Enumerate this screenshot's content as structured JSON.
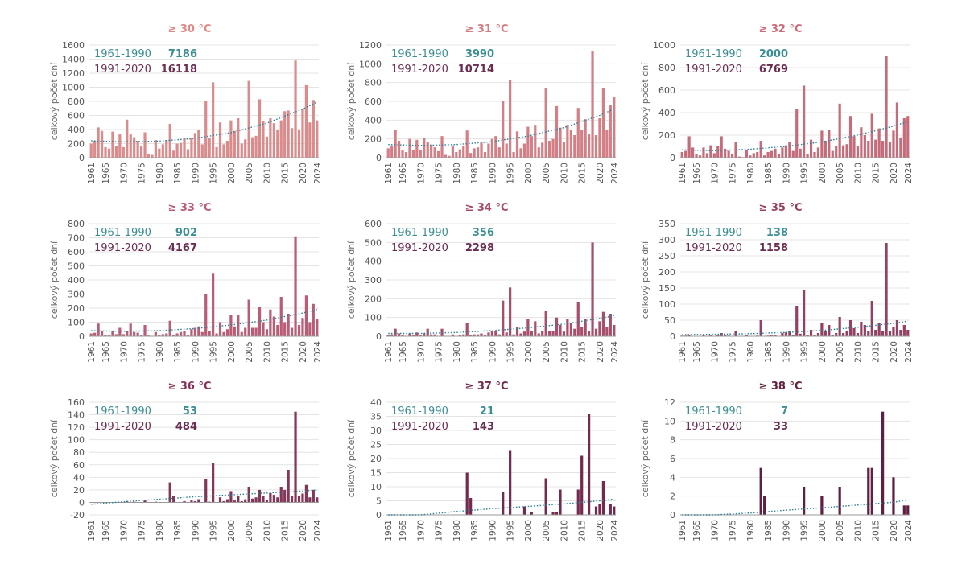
{
  "ylabel": "celkový počet dní",
  "x_tick_labels": [
    "1961",
    "1965",
    "1970",
    "1975",
    "1980",
    "1985",
    "1990",
    "1995",
    "2000",
    "2005",
    "2010",
    "2015",
    "2020",
    "2024"
  ],
  "period_labels": [
    "1961-1990",
    "1991-2020"
  ],
  "colors": {
    "period1": "#3a8f93",
    "period2": "#6b2c52",
    "trend": "#2a7f9a",
    "grid": "#e4e4e4",
    "axis": "#9a9a9a",
    "tick_text": "#555555"
  },
  "chart_data": [
    {
      "type": "bar",
      "title": "≥ 30 °C",
      "color": "#da8c8c",
      "title_color": "#e08a86",
      "ylim": [
        0,
        1600
      ],
      "yticks": [
        0,
        200,
        400,
        600,
        800,
        1000,
        1200,
        1400,
        1600
      ],
      "totals": [
        "7186",
        "16118"
      ],
      "trend": [
        [
          1961,
          240
        ],
        [
          1970,
          225
        ],
        [
          1980,
          235
        ],
        [
          1990,
          275
        ],
        [
          2000,
          355
        ],
        [
          2010,
          490
        ],
        [
          2020,
          690
        ],
        [
          2024,
          790
        ]
      ],
      "x_start": 1961,
      "values": [
        200,
        240,
        430,
        380,
        150,
        130,
        370,
        160,
        330,
        150,
        540,
        330,
        290,
        240,
        170,
        360,
        50,
        40,
        250,
        130,
        190,
        250,
        480,
        100,
        200,
        210,
        280,
        120,
        280,
        350,
        400,
        190,
        800,
        280,
        1070,
        150,
        500,
        190,
        240,
        530,
        380,
        560,
        200,
        260,
        1090,
        290,
        310,
        830,
        520,
        300,
        560,
        490,
        400,
        530,
        660,
        670,
        420,
        1380,
        390,
        690,
        1030,
        500,
        820,
        530
      ]
    },
    {
      "type": "bar",
      "title": "≥ 31 °C",
      "color": "#d27f85",
      "title_color": "#d87d82",
      "ylim": [
        0,
        1200
      ],
      "yticks": [
        0,
        200,
        400,
        600,
        800,
        1000,
        1200
      ],
      "totals": [
        "3990",
        "10714"
      ],
      "trend": [
        [
          1961,
          140
        ],
        [
          1970,
          130
        ],
        [
          1980,
          140
        ],
        [
          1990,
          170
        ],
        [
          2000,
          230
        ],
        [
          2010,
          320
        ],
        [
          2020,
          450
        ],
        [
          2024,
          520
        ]
      ],
      "x_start": 1961,
      "values": [
        100,
        130,
        300,
        180,
        80,
        60,
        200,
        80,
        190,
        80,
        210,
        170,
        140,
        110,
        70,
        230,
        30,
        20,
        130,
        60,
        90,
        120,
        290,
        50,
        100,
        110,
        160,
        60,
        150,
        200,
        230,
        110,
        600,
        150,
        830,
        60,
        280,
        100,
        150,
        330,
        230,
        350,
        110,
        160,
        740,
        180,
        200,
        550,
        320,
        170,
        350,
        300,
        240,
        530,
        300,
        410,
        250,
        1140,
        240,
        420,
        740,
        300,
        560,
        650
      ]
    },
    {
      "type": "bar",
      "title": "≥ 32 °C",
      "color": "#c56c7b",
      "title_color": "#d06b78",
      "ylim": [
        0,
        1000
      ],
      "yticks": [
        0,
        200,
        400,
        600,
        800,
        1000
      ],
      "totals": [
        "2000",
        "6769"
      ],
      "trend": [
        [
          1961,
          70
        ],
        [
          1970,
          62
        ],
        [
          1980,
          75
        ],
        [
          1990,
          100
        ],
        [
          2000,
          140
        ],
        [
          2010,
          200
        ],
        [
          2020,
          280
        ],
        [
          2024,
          320
        ]
      ],
      "x_start": 1961,
      "values": [
        50,
        60,
        190,
        90,
        30,
        20,
        90,
        40,
        110,
        40,
        100,
        190,
        80,
        60,
        30,
        140,
        10,
        5,
        70,
        20,
        40,
        50,
        150,
        20,
        50,
        60,
        80,
        30,
        90,
        110,
        140,
        60,
        430,
        80,
        640,
        30,
        160,
        50,
        90,
        240,
        150,
        250,
        60,
        100,
        480,
        110,
        120,
        370,
        190,
        100,
        270,
        200,
        150,
        390,
        160,
        260,
        150,
        900,
        140,
        240,
        490,
        180,
        350,
        370
      ]
    },
    {
      "type": "bar",
      "title": "≥ 33 °C",
      "color": "#b85d75",
      "title_color": "#bb5a73",
      "ylim": [
        0,
        800
      ],
      "yticks": [
        0,
        100,
        200,
        300,
        400,
        500,
        600,
        700,
        800
      ],
      "totals": [
        "902",
        "4167"
      ],
      "trend": [
        [
          1961,
          40
        ],
        [
          1970,
          35
        ],
        [
          1980,
          40
        ],
        [
          1990,
          55
        ],
        [
          2000,
          80
        ],
        [
          2010,
          115
        ],
        [
          2020,
          165
        ],
        [
          2024,
          190
        ]
      ],
      "x_start": 1961,
      "values": [
        20,
        25,
        90,
        40,
        10,
        10,
        40,
        15,
        60,
        15,
        40,
        90,
        30,
        25,
        10,
        80,
        5,
        2,
        30,
        10,
        15,
        20,
        110,
        10,
        20,
        30,
        40,
        10,
        50,
        60,
        70,
        30,
        300,
        40,
        450,
        20,
        100,
        30,
        50,
        150,
        70,
        150,
        30,
        60,
        260,
        60,
        60,
        210,
        100,
        50,
        190,
        140,
        80,
        280,
        100,
        160,
        60,
        710,
        80,
        130,
        290,
        100,
        230,
        120
      ]
    },
    {
      "type": "bar",
      "title": "≥ 34 °C",
      "color": "#a64e6b",
      "title_color": "#a84b6a",
      "ylim": [
        0,
        600
      ],
      "yticks": [
        0,
        100,
        200,
        300,
        400,
        500,
        600
      ],
      "totals": [
        "356",
        "2298"
      ],
      "trend": [
        [
          1961,
          15
        ],
        [
          1970,
          15
        ],
        [
          1980,
          20
        ],
        [
          1990,
          30
        ],
        [
          2000,
          45
        ],
        [
          2010,
          65
        ],
        [
          2020,
          95
        ],
        [
          2024,
          110
        ]
      ],
      "x_start": 1961,
      "values": [
        5,
        10,
        40,
        15,
        5,
        2,
        15,
        5,
        20,
        5,
        15,
        40,
        10,
        10,
        2,
        40,
        0,
        0,
        10,
        2,
        5,
        10,
        70,
        5,
        10,
        10,
        15,
        5,
        20,
        30,
        30,
        10,
        190,
        20,
        260,
        10,
        50,
        15,
        25,
        90,
        30,
        80,
        15,
        30,
        135,
        30,
        30,
        100,
        60,
        25,
        90,
        70,
        40,
        180,
        50,
        90,
        30,
        500,
        40,
        80,
        130,
        50,
        120,
        60
      ]
    },
    {
      "type": "bar",
      "title": "≥ 35 °C",
      "color": "#934162",
      "title_color": "#96405f",
      "ylim": [
        0,
        350
      ],
      "yticks": [
        0,
        50,
        100,
        150,
        200,
        250,
        300,
        350
      ],
      "totals": [
        "138",
        "1158"
      ],
      "trend": [
        [
          1961,
          5
        ],
        [
          1970,
          6
        ],
        [
          1980,
          8
        ],
        [
          1990,
          12
        ],
        [
          2000,
          18
        ],
        [
          2010,
          28
        ],
        [
          2020,
          40
        ],
        [
          2024,
          47
        ]
      ],
      "x_start": 1961,
      "values": [
        2,
        2,
        5,
        1,
        0,
        0,
        3,
        1,
        5,
        1,
        5,
        10,
        3,
        2,
        0,
        15,
        0,
        0,
        3,
        0,
        1,
        2,
        50,
        1,
        2,
        3,
        5,
        1,
        10,
        12,
        15,
        5,
        95,
        8,
        145,
        3,
        20,
        5,
        10,
        40,
        15,
        35,
        5,
        10,
        60,
        10,
        15,
        50,
        25,
        10,
        45,
        35,
        15,
        110,
        20,
        40,
        15,
        290,
        15,
        30,
        50,
        20,
        35,
        20
      ]
    },
    {
      "type": "bar",
      "title": "≥ 36 °C",
      "color": "#823658",
      "title_color": "#883358",
      "ylim": [
        -20,
        160
      ],
      "yticks": [
        -20,
        0,
        20,
        40,
        60,
        80,
        100,
        120,
        140,
        160
      ],
      "totals": [
        "53",
        "484"
      ],
      "trend": [
        [
          1961,
          -3
        ],
        [
          1970,
          1
        ],
        [
          1980,
          5
        ],
        [
          1990,
          9
        ],
        [
          2000,
          12
        ],
        [
          2010,
          15
        ],
        [
          2020,
          18
        ],
        [
          2024,
          20
        ]
      ],
      "x_start": 1961,
      "values": [
        0,
        0,
        0,
        0,
        0,
        0,
        0,
        0,
        0,
        0,
        2,
        0,
        1,
        0,
        0,
        3,
        0,
        0,
        1,
        0,
        0,
        0,
        32,
        10,
        0,
        0,
        2,
        0,
        3,
        2,
        5,
        0,
        37,
        1,
        63,
        0,
        8,
        2,
        5,
        18,
        3,
        10,
        2,
        5,
        25,
        6,
        8,
        20,
        10,
        4,
        15,
        12,
        8,
        25,
        20,
        52,
        10,
        145,
        10,
        14,
        28,
        8,
        20,
        8
      ]
    },
    {
      "type": "bar",
      "title": "≥ 37 °C",
      "color": "#722a4e",
      "title_color": "#742a4f",
      "ylim": [
        0,
        40
      ],
      "yticks": [
        0,
        5,
        10,
        15,
        20,
        25,
        30,
        35,
        40
      ],
      "totals": [
        "21",
        "143"
      ],
      "trend": [
        [
          1961,
          -2
        ],
        [
          1970,
          0
        ],
        [
          1980,
          1.2
        ],
        [
          1990,
          2.2
        ],
        [
          2000,
          3
        ],
        [
          2010,
          3.9
        ],
        [
          2020,
          5
        ],
        [
          2024,
          5.6
        ]
      ],
      "x_start": 1961,
      "values": [
        0,
        0,
        0,
        0,
        0,
        0,
        0,
        0,
        0,
        0,
        0,
        0,
        0,
        0,
        0,
        0,
        0,
        0,
        0,
        0,
        0,
        0,
        15,
        6,
        0,
        0,
        0,
        0,
        0,
        0,
        0,
        0,
        8,
        0,
        23,
        0,
        0,
        0,
        3,
        0,
        1,
        0,
        0,
        0,
        13,
        0,
        1,
        1,
        9,
        0,
        0,
        0,
        0,
        9,
        21,
        0,
        36,
        0,
        3,
        4,
        12,
        0,
        4,
        3
      ]
    },
    {
      "type": "bar",
      "title": "≥ 38 °C",
      "color": "#5e1f42",
      "title_color": "#64223f",
      "ylim": [
        0,
        12
      ],
      "yticks": [
        0,
        2,
        4,
        6,
        8,
        10,
        12
      ],
      "totals": [
        "7",
        "33"
      ],
      "trend": [
        [
          1961,
          -0.5
        ],
        [
          1970,
          -0.1
        ],
        [
          1980,
          0.2
        ],
        [
          1990,
          0.5
        ],
        [
          2000,
          0.75
        ],
        [
          2010,
          1.05
        ],
        [
          2020,
          1.35
        ],
        [
          2024,
          1.6
        ]
      ],
      "x_start": 1961,
      "values": [
        0,
        0,
        0,
        0,
        0,
        0,
        0,
        0,
        0,
        0,
        0,
        0,
        0,
        0,
        0,
        0,
        0,
        0,
        0,
        0,
        0,
        0,
        5,
        2,
        0,
        0,
        0,
        0,
        0,
        0,
        0,
        0,
        0,
        0,
        3,
        0,
        0,
        0,
        0,
        2,
        0,
        0,
        0,
        0,
        3,
        0,
        0,
        0,
        0,
        0,
        0,
        0,
        5,
        5,
        0,
        0,
        11,
        0,
        0,
        4,
        0,
        0,
        1,
        1
      ]
    }
  ]
}
